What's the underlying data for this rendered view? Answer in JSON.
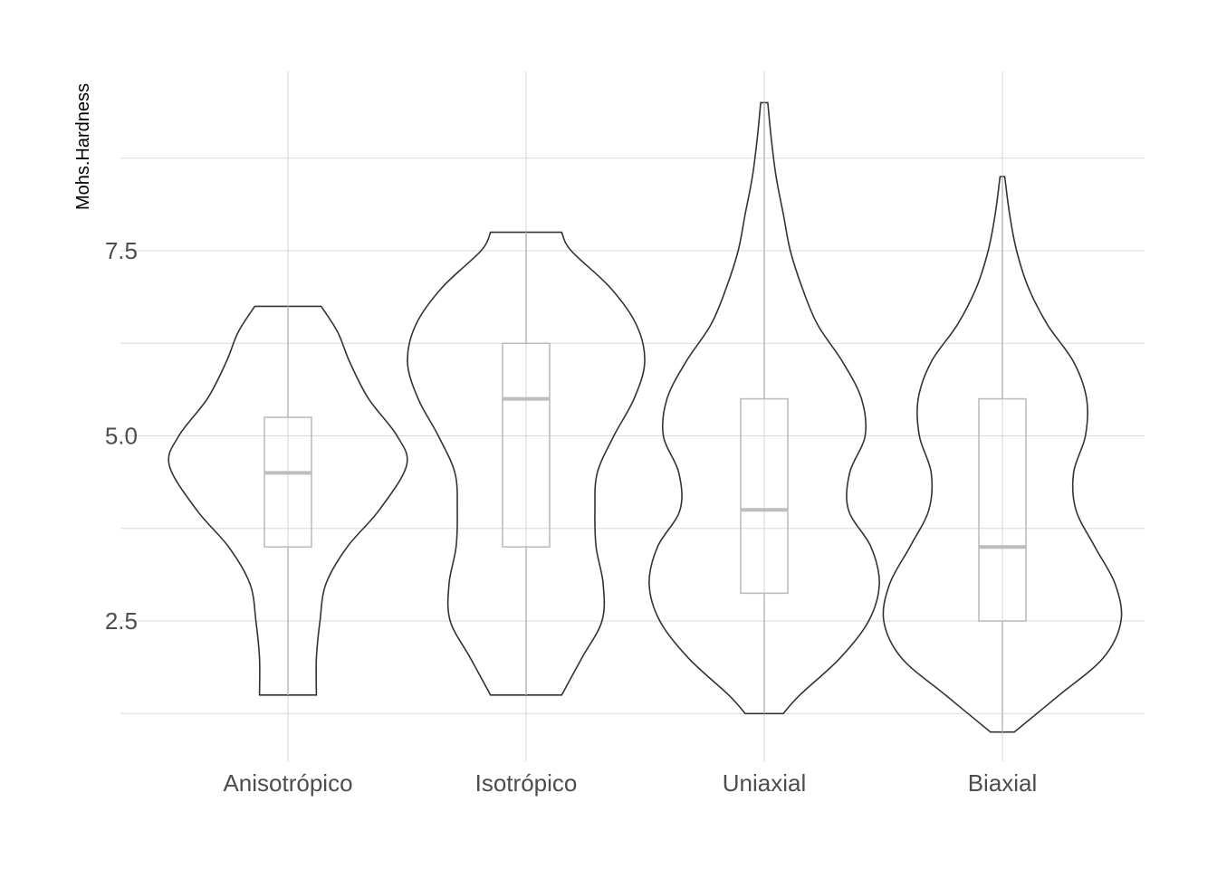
{
  "chart_data": {
    "type": "violin",
    "title": "",
    "xlabel": "",
    "ylabel": "Mohs.Hardness",
    "ylim": [
      0.8,
      9.7
    ],
    "y_ticks": [
      2.5,
      5.0,
      7.5
    ],
    "y_tick_labels": [
      "2.5",
      "5.0",
      "7.5"
    ],
    "y_minor_ticks": [
      1.25,
      3.75,
      6.25,
      8.75
    ],
    "grid": true,
    "legend": "none",
    "categories": [
      "Anisotrópico",
      "Isotrópico",
      "Uniaxial",
      "Biaxial"
    ],
    "series": [
      {
        "min": 1.5,
        "max": 6.75,
        "box": {
          "q1": 3.5,
          "median": 4.5,
          "q3": 5.25,
          "whisker_low": 1.5,
          "whisker_high": 6.75
        },
        "density": [
          [
            1.5,
            0.24
          ],
          [
            2.0,
            0.24
          ],
          [
            2.5,
            0.27
          ],
          [
            3.0,
            0.32
          ],
          [
            3.5,
            0.5
          ],
          [
            4.0,
            0.77
          ],
          [
            4.6,
            1.0
          ],
          [
            5.0,
            0.92
          ],
          [
            5.5,
            0.68
          ],
          [
            6.0,
            0.52
          ],
          [
            6.4,
            0.42
          ],
          [
            6.75,
            0.28
          ]
        ]
      },
      {
        "min": 1.5,
        "max": 7.75,
        "box": {
          "q1": 3.5,
          "median": 5.5,
          "q3": 6.25,
          "whisker_low": 1.5,
          "whisker_high": 7.75
        },
        "density": [
          [
            1.5,
            0.3
          ],
          [
            2.0,
            0.47
          ],
          [
            2.5,
            0.64
          ],
          [
            3.0,
            0.65
          ],
          [
            3.5,
            0.59
          ],
          [
            4.0,
            0.58
          ],
          [
            4.5,
            0.6
          ],
          [
            5.0,
            0.74
          ],
          [
            5.5,
            0.91
          ],
          [
            6.0,
            1.0
          ],
          [
            6.5,
            0.93
          ],
          [
            7.0,
            0.71
          ],
          [
            7.5,
            0.38
          ],
          [
            7.75,
            0.3
          ]
        ]
      },
      {
        "min": 1.25,
        "max": 9.5,
        "box": {
          "q1": 2.875,
          "median": 4.0,
          "q3": 5.5,
          "whisker_low": 1.25,
          "whisker_high": 9.5
        },
        "density": [
          [
            1.25,
            0.16
          ],
          [
            1.5,
            0.3
          ],
          [
            2.0,
            0.64
          ],
          [
            2.5,
            0.88
          ],
          [
            3.0,
            0.97
          ],
          [
            3.5,
            0.9
          ],
          [
            4.0,
            0.71
          ],
          [
            4.5,
            0.72
          ],
          [
            5.0,
            0.85
          ],
          [
            5.5,
            0.82
          ],
          [
            6.0,
            0.66
          ],
          [
            6.5,
            0.45
          ],
          [
            7.0,
            0.32
          ],
          [
            7.5,
            0.22
          ],
          [
            8.0,
            0.16
          ],
          [
            8.5,
            0.1
          ],
          [
            9.0,
            0.06
          ],
          [
            9.5,
            0.03
          ]
        ]
      },
      {
        "min": 1.0,
        "max": 8.5,
        "box": {
          "q1": 2.5,
          "median": 3.5,
          "q3": 5.5,
          "whisker_low": 1.0,
          "whisker_high": 8.5
        },
        "density": [
          [
            1.0,
            0.1
          ],
          [
            1.5,
            0.48
          ],
          [
            2.0,
            0.85
          ],
          [
            2.5,
            1.0
          ],
          [
            3.0,
            0.95
          ],
          [
            3.5,
            0.78
          ],
          [
            4.0,
            0.62
          ],
          [
            4.5,
            0.6
          ],
          [
            5.0,
            0.7
          ],
          [
            5.5,
            0.71
          ],
          [
            6.0,
            0.6
          ],
          [
            6.5,
            0.38
          ],
          [
            7.0,
            0.22
          ],
          [
            7.5,
            0.12
          ],
          [
            8.0,
            0.06
          ],
          [
            8.5,
            0.02
          ]
        ]
      }
    ]
  }
}
